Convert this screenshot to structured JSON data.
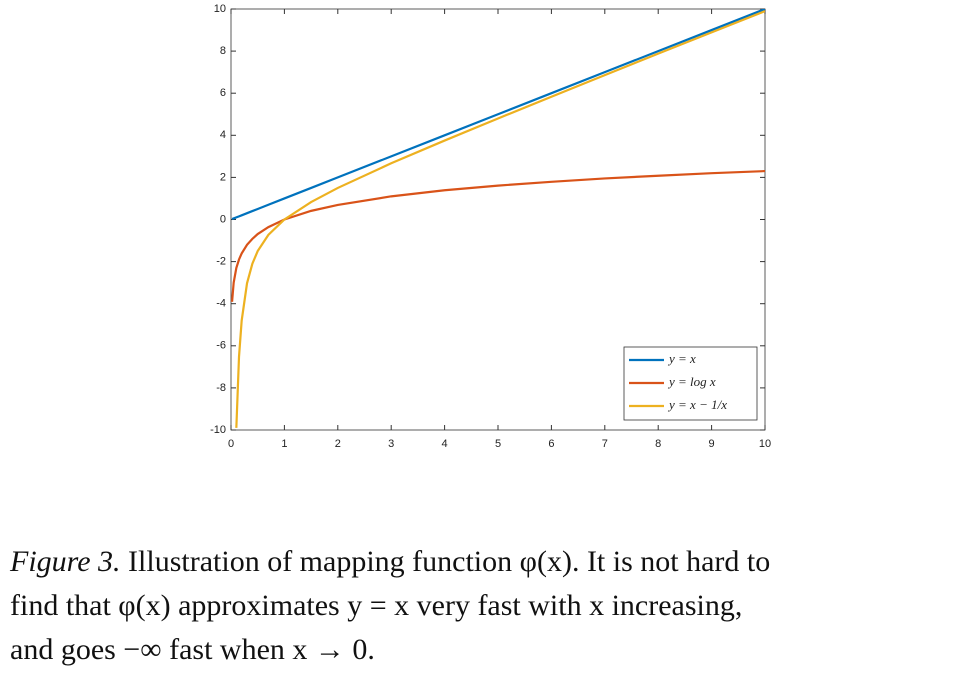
{
  "chart_data": {
    "type": "line",
    "x": [
      0.02,
      0.05,
      0.1,
      0.15,
      0.2,
      0.3,
      0.4,
      0.5,
      0.7,
      1,
      1.5,
      2,
      3,
      4,
      5,
      6,
      7,
      8,
      9,
      10
    ],
    "series": [
      {
        "name": "y = x",
        "color": "#0072bd",
        "values": [
          0.02,
          0.05,
          0.1,
          0.15,
          0.2,
          0.3,
          0.4,
          0.5,
          0.7,
          1,
          1.5,
          2,
          3,
          4,
          5,
          6,
          7,
          8,
          9,
          10
        ]
      },
      {
        "name": "y = log x",
        "color": "#d95319",
        "values": [
          -3.91,
          -3.0,
          -2.3,
          -1.9,
          -1.61,
          -1.2,
          -0.92,
          -0.69,
          -0.36,
          0,
          0.41,
          0.69,
          1.1,
          1.39,
          1.61,
          1.79,
          1.95,
          2.08,
          2.2,
          2.3
        ]
      },
      {
        "name": "y = x − 1/x",
        "color": "#edb120",
        "values": [
          null,
          null,
          -9.9,
          -6.52,
          -4.8,
          -3.03,
          -2.1,
          -1.5,
          -0.73,
          0,
          0.83,
          1.5,
          2.67,
          3.75,
          4.8,
          5.83,
          6.86,
          7.88,
          8.89,
          9.9
        ]
      }
    ],
    "xlim": [
      0,
      10
    ],
    "xticks": [
      0,
      1,
      2,
      3,
      4,
      5,
      6,
      7,
      8,
      9,
      10
    ],
    "ylim": [
      -10,
      10
    ],
    "yticks": [
      -10,
      -8,
      -6,
      -4,
      -2,
      0,
      2,
      4,
      6,
      8,
      10
    ],
    "grid": false,
    "legend": "lower right"
  },
  "caption": {
    "label": "Figure 3.",
    "lines": [
      "Illustration of mapping function φ(x). It is not hard to",
      "find that φ(x) approximates y = x very fast with x increasing,",
      "and goes −∞ fast when x → 0."
    ]
  }
}
